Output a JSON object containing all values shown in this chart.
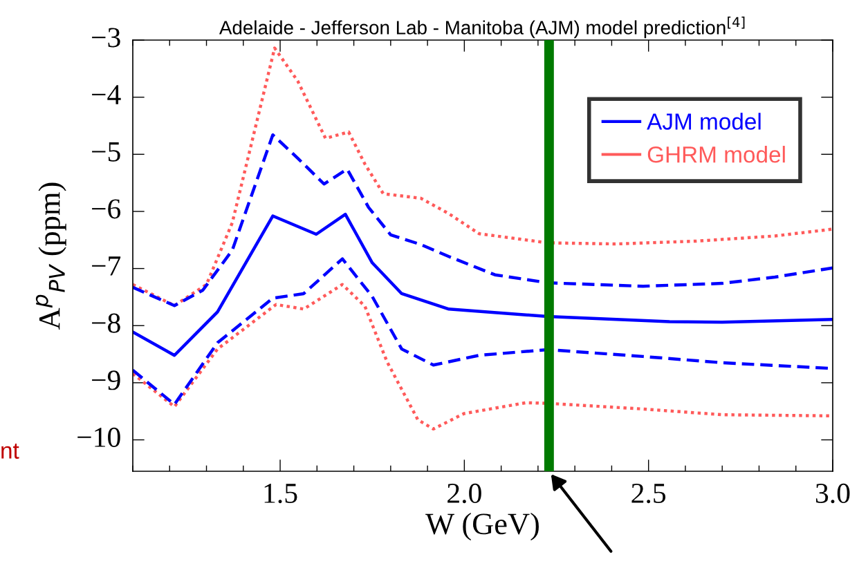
{
  "chart_data": {
    "type": "line",
    "title": "Adelaide - Jefferson Lab - Manitoba (AJM) model prediction$^{[4]}$",
    "xlabel": "W (GeV)",
    "ylabel": "A$^{p}$$_{PV}$ (ppm)",
    "xlim": [
      1.1,
      3.0
    ],
    "xticks": [
      {
        "value": 1.5,
        "label": "1.5"
      },
      {
        "value": 2.0,
        "label": "2.0"
      },
      {
        "value": 2.5,
        "label": "2.5"
      },
      {
        "value": 3.0,
        "label": "3.0"
      }
    ],
    "ylim": [
      -10.55,
      -3
    ],
    "yticks": [
      -10,
      -9,
      -8,
      -7,
      -6,
      -5,
      -4,
      -3
    ],
    "grid": false,
    "legend": "top right",
    "marker": "none",
    "series": [
      {
        "name": "GHRM model",
        "color": "#ff5a5a",
        "line_style": "dotted",
        "x": [
          1.1,
          1.213,
          1.3,
          1.37,
          1.485,
          1.548,
          1.623,
          1.686,
          1.73,
          1.78,
          1.882,
          1.958,
          2.04,
          2.226,
          2.41,
          2.63,
          2.843,
          3.0
        ],
        "values": [
          -7.28,
          -7.65,
          -7.28,
          -6.2,
          -3.14,
          -3.72,
          -4.72,
          -4.61,
          -5.17,
          -5.69,
          -5.77,
          -6.04,
          -6.39,
          -6.55,
          -6.57,
          -6.52,
          -6.43,
          -6.31
        ]
      },
      {
        "color": "#ff5a5a",
        "line_style": "dotted",
        "x": [
          1.1,
          1.213,
          1.33,
          1.489,
          1.564,
          1.669,
          1.73,
          1.79,
          1.874,
          1.916,
          1.999,
          2.167,
          2.226,
          2.485,
          2.7,
          3.0
        ],
        "values": [
          -8.84,
          -9.42,
          -8.41,
          -7.63,
          -7.71,
          -7.28,
          -7.66,
          -8.63,
          -9.65,
          -9.81,
          -9.54,
          -9.35,
          -9.36,
          -9.46,
          -9.56,
          -9.58
        ]
      },
      {
        "color": "#0000ff",
        "line_style": "dashed",
        "x": [
          1.1,
          1.213,
          1.29,
          1.37,
          1.48,
          1.548,
          1.619,
          1.682,
          1.74,
          1.8,
          1.882,
          1.958,
          2.083,
          2.226,
          2.485,
          2.7,
          2.843,
          3.0
        ],
        "values": [
          -7.33,
          -7.65,
          -7.38,
          -6.68,
          -4.66,
          -5.07,
          -5.52,
          -5.26,
          -5.93,
          -6.41,
          -6.58,
          -6.79,
          -7.11,
          -7.25,
          -7.31,
          -7.26,
          -7.15,
          -6.99
        ]
      },
      {
        "color": "#0000ff",
        "line_style": "dashed",
        "x": [
          1.1,
          1.213,
          1.33,
          1.48,
          1.564,
          1.669,
          1.75,
          1.83,
          1.916,
          2.04,
          2.226,
          2.485,
          2.7,
          3.0
        ],
        "values": [
          -8.78,
          -9.38,
          -8.3,
          -7.52,
          -7.44,
          -6.83,
          -7.49,
          -8.41,
          -8.69,
          -8.52,
          -8.42,
          -8.54,
          -8.65,
          -8.75
        ]
      },
      {
        "name": "AJM model",
        "color": "#0000ff",
        "line_style": "solid",
        "x": [
          1.1,
          1.213,
          1.33,
          1.48,
          1.598,
          1.677,
          1.75,
          1.83,
          1.958,
          2.226,
          2.557,
          2.7,
          3.0
        ],
        "values": [
          -8.11,
          -8.52,
          -7.76,
          -6.08,
          -6.4,
          -6.05,
          -6.9,
          -7.44,
          -7.71,
          -7.84,
          -7.93,
          -7.94,
          -7.89
        ]
      }
    ],
    "ref_lines": [
      {
        "axis": "x",
        "value": 2.23,
        "label": null,
        "color": "#007a00"
      }
    ],
    "annotations": [
      "nt"
    ]
  }
}
